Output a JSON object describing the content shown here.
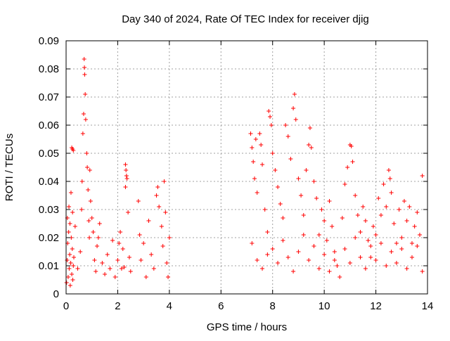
{
  "chart_data": {
    "type": "scatter",
    "title": "Day 340 of 2024, Rate Of TEC Index for receiver djig",
    "xlabel": "GPS time / hours",
    "ylabel": "ROTI / TECUs",
    "xlim": [
      0,
      14
    ],
    "ylim": [
      0,
      0.09
    ],
    "xticks": [
      "0",
      "2",
      "4",
      "6",
      "8",
      "10",
      "12",
      "14"
    ],
    "yticks": [
      "0",
      "0.01",
      "0.02",
      "0.03",
      "0.04",
      "0.05",
      "0.06",
      "0.07",
      "0.08",
      "0.09"
    ],
    "grid": true,
    "marker": "+",
    "color": "#ff0000",
    "series": [
      {
        "name": "ROTI",
        "points": [
          [
            0.02,
            0.004
          ],
          [
            0.04,
            0.012
          ],
          [
            0.06,
            0.018
          ],
          [
            0.08,
            0.006
          ],
          [
            0.1,
            0.022
          ],
          [
            0.12,
            0.009
          ],
          [
            0.14,
            0.014
          ],
          [
            0.16,
            0.003
          ],
          [
            0.18,
            0.011
          ],
          [
            0.2,
            0.02
          ],
          [
            0.22,
            0.007
          ],
          [
            0.24,
            0.016
          ],
          [
            0.26,
            0.005
          ],
          [
            0.28,
            0.01
          ],
          [
            0.3,
            0.013
          ],
          [
            0.05,
            0.027
          ],
          [
            0.11,
            0.031
          ],
          [
            0.15,
            0.025
          ],
          [
            0.19,
            0.036
          ],
          [
            0.25,
            0.029
          ],
          [
            0.22,
            0.052
          ],
          [
            0.25,
            0.0515
          ],
          [
            0.28,
            0.051
          ],
          [
            0.35,
            0.024
          ],
          [
            0.45,
            0.009
          ],
          [
            0.55,
            0.015
          ],
          [
            0.6,
            0.03
          ],
          [
            0.62,
            0.04
          ],
          [
            0.65,
            0.057
          ],
          [
            0.68,
            0.064
          ],
          [
            0.7,
            0.0835
          ],
          [
            0.71,
            0.0805
          ],
          [
            0.72,
            0.078
          ],
          [
            0.74,
            0.071
          ],
          [
            0.76,
            0.062
          ],
          [
            0.8,
            0.05
          ],
          [
            0.82,
            0.045
          ],
          [
            0.85,
            0.037
          ],
          [
            0.88,
            0.026
          ],
          [
            0.9,
            0.02
          ],
          [
            0.92,
            0.044
          ],
          [
            0.95,
            0.033
          ],
          [
            1.0,
            0.027
          ],
          [
            1.05,
            0.022
          ],
          [
            1.1,
            0.012
          ],
          [
            1.15,
            0.008
          ],
          [
            1.2,
            0.017
          ],
          [
            1.25,
            0.02
          ],
          [
            1.3,
            0.025
          ],
          [
            1.4,
            0.011
          ],
          [
            1.5,
            0.007
          ],
          [
            1.6,
            0.014
          ],
          [
            1.7,
            0.009
          ],
          [
            1.8,
            0.019
          ],
          [
            1.9,
            0.006
          ],
          [
            2.0,
            0.012
          ],
          [
            2.05,
            0.018
          ],
          [
            2.1,
            0.022
          ],
          [
            2.15,
            0.009
          ],
          [
            2.2,
            0.016
          ],
          [
            2.25,
            0.0095
          ],
          [
            2.3,
            0.046
          ],
          [
            2.32,
            0.044
          ],
          [
            2.34,
            0.042
          ],
          [
            2.36,
            0.041
          ],
          [
            2.3,
            0.038
          ],
          [
            2.4,
            0.029
          ],
          [
            2.45,
            0.013
          ],
          [
            2.5,
            0.008
          ],
          [
            2.8,
            0.033
          ],
          [
            2.85,
            0.021
          ],
          [
            2.9,
            0.012
          ],
          [
            3.0,
            0.018
          ],
          [
            3.1,
            0.006
          ],
          [
            3.2,
            0.026
          ],
          [
            3.3,
            0.014
          ],
          [
            3.4,
            0.009
          ],
          [
            3.5,
            0.035
          ],
          [
            3.55,
            0.038
          ],
          [
            3.6,
            0.031
          ],
          [
            3.7,
            0.024
          ],
          [
            3.75,
            0.017
          ],
          [
            3.8,
            0.04
          ],
          [
            3.85,
            0.029
          ],
          [
            3.9,
            0.011
          ],
          [
            3.95,
            0.006
          ],
          [
            4.0,
            0.02
          ],
          [
            7.15,
            0.057
          ],
          [
            7.2,
            0.052
          ],
          [
            7.25,
            0.047
          ],
          [
            7.3,
            0.041
          ],
          [
            7.35,
            0.055
          ],
          [
            7.4,
            0.036
          ],
          [
            7.5,
            0.057
          ],
          [
            7.55,
            0.053
          ],
          [
            7.6,
            0.046
          ],
          [
            7.7,
            0.03
          ],
          [
            7.8,
            0.022
          ],
          [
            7.85,
            0.065
          ],
          [
            7.9,
            0.063
          ],
          [
            7.95,
            0.06
          ],
          [
            8.0,
            0.05
          ],
          [
            8.1,
            0.044
          ],
          [
            8.2,
            0.038
          ],
          [
            8.3,
            0.032
          ],
          [
            8.4,
            0.027
          ],
          [
            8.5,
            0.06
          ],
          [
            8.6,
            0.056
          ],
          [
            8.7,
            0.048
          ],
          [
            8.8,
            0.066
          ],
          [
            8.85,
            0.071
          ],
          [
            8.9,
            0.062
          ],
          [
            9.0,
            0.041
          ],
          [
            9.1,
            0.035
          ],
          [
            9.2,
            0.028
          ],
          [
            9.3,
            0.044
          ],
          [
            9.4,
            0.053
          ],
          [
            9.45,
            0.059
          ],
          [
            9.5,
            0.052
          ],
          [
            9.6,
            0.04
          ],
          [
            9.7,
            0.034
          ],
          [
            9.8,
            0.021
          ],
          [
            9.9,
            0.03
          ],
          [
            10.0,
            0.026
          ],
          [
            10.1,
            0.019
          ],
          [
            10.2,
            0.033
          ],
          [
            10.3,
            0.024
          ],
          [
            10.4,
            0.015
          ],
          [
            10.5,
            0.01
          ],
          [
            10.6,
            0.006
          ],
          [
            10.7,
            0.027
          ],
          [
            10.8,
            0.039
          ],
          [
            10.9,
            0.045
          ],
          [
            11.0,
            0.053
          ],
          [
            11.05,
            0.0525
          ],
          [
            11.1,
            0.047
          ],
          [
            11.2,
            0.035
          ],
          [
            11.3,
            0.028
          ],
          [
            11.4,
            0.022
          ],
          [
            11.5,
            0.031
          ],
          [
            11.6,
            0.026
          ],
          [
            11.7,
            0.019
          ],
          [
            11.8,
            0.013
          ],
          [
            11.9,
            0.024
          ],
          [
            12.0,
            0.021
          ],
          [
            12.1,
            0.034
          ],
          [
            12.2,
            0.028
          ],
          [
            12.3,
            0.039
          ],
          [
            12.4,
            0.031
          ],
          [
            12.5,
            0.044
          ],
          [
            12.55,
            0.041
          ],
          [
            12.6,
            0.036
          ],
          [
            12.7,
            0.025
          ],
          [
            12.8,
            0.018
          ],
          [
            12.9,
            0.03
          ],
          [
            13.0,
            0.02
          ],
          [
            13.1,
            0.033
          ],
          [
            13.2,
            0.026
          ],
          [
            13.3,
            0.031
          ],
          [
            13.4,
            0.018
          ],
          [
            13.5,
            0.024
          ],
          [
            13.6,
            0.029
          ],
          [
            13.7,
            0.021
          ],
          [
            13.8,
            0.042
          ],
          [
            7.2,
            0.018
          ],
          [
            7.4,
            0.012
          ],
          [
            7.6,
            0.009
          ],
          [
            7.8,
            0.014
          ],
          [
            8.0,
            0.016
          ],
          [
            8.2,
            0.011
          ],
          [
            8.4,
            0.019
          ],
          [
            8.6,
            0.013
          ],
          [
            8.8,
            0.008
          ],
          [
            9.0,
            0.015
          ],
          [
            9.2,
            0.021
          ],
          [
            9.4,
            0.012
          ],
          [
            9.6,
            0.017
          ],
          [
            9.8,
            0.009
          ],
          [
            10.0,
            0.014
          ],
          [
            10.2,
            0.008
          ],
          [
            10.4,
            0.012
          ],
          [
            10.8,
            0.016
          ],
          [
            11.0,
            0.011
          ],
          [
            11.2,
            0.02
          ],
          [
            11.4,
            0.013
          ],
          [
            11.6,
            0.009
          ],
          [
            11.8,
            0.017
          ],
          [
            12.0,
            0.012
          ],
          [
            12.2,
            0.018
          ],
          [
            12.4,
            0.01
          ],
          [
            12.6,
            0.015
          ],
          [
            12.8,
            0.011
          ],
          [
            13.0,
            0.016
          ],
          [
            13.2,
            0.009
          ],
          [
            13.4,
            0.013
          ],
          [
            13.6,
            0.017
          ],
          [
            13.8,
            0.008
          ]
        ]
      }
    ]
  }
}
